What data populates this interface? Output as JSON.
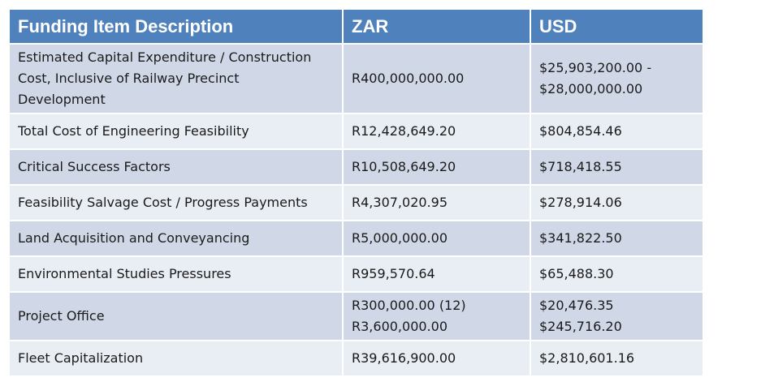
{
  "header": {
    "description": "Funding Item Description",
    "zar": "ZAR",
    "usd": "USD"
  },
  "rows": [
    {
      "description": [
        "Estimated Capital Expenditure / Construction",
        "Cost, Inclusive of Railway Precinct",
        "Development"
      ],
      "zar": [
        "R400,000,000.00"
      ],
      "usd": [
        "$25,903,200.00 -",
        "$28,000,000.00"
      ]
    },
    {
      "description": [
        "Total Cost of Engineering Feasibility"
      ],
      "zar": [
        "R12,428,649.20"
      ],
      "usd": [
        "$804,854.46"
      ]
    },
    {
      "description": [
        "Critical Success Factors"
      ],
      "zar": [
        "R10,508,649.20"
      ],
      "usd": [
        "$718,418.55"
      ]
    },
    {
      "description": [
        "Feasibility Salvage Cost / Progress Payments"
      ],
      "zar": [
        "R4,307,020.95"
      ],
      "usd": [
        "$278,914.06"
      ]
    },
    {
      "description": [
        "Land Acquisition and Conveyancing"
      ],
      "zar": [
        "R5,000,000.00"
      ],
      "usd": [
        "$341,822.50"
      ]
    },
    {
      "description": [
        "Environmental Studies Pressures"
      ],
      "zar": [
        "R959,570.64"
      ],
      "usd": [
        "$65,488.30"
      ]
    },
    {
      "description": [
        "Project Office"
      ],
      "zar": [
        "R300,000.00 (12)",
        "R3,600,000.00"
      ],
      "usd": [
        "$20,476.35",
        "$245,716.20"
      ]
    },
    {
      "description": [
        "Fleet Capitalization"
      ],
      "zar": [
        "R39,616,900.00"
      ],
      "usd": [
        "$2,810,601.16"
      ]
    }
  ]
}
